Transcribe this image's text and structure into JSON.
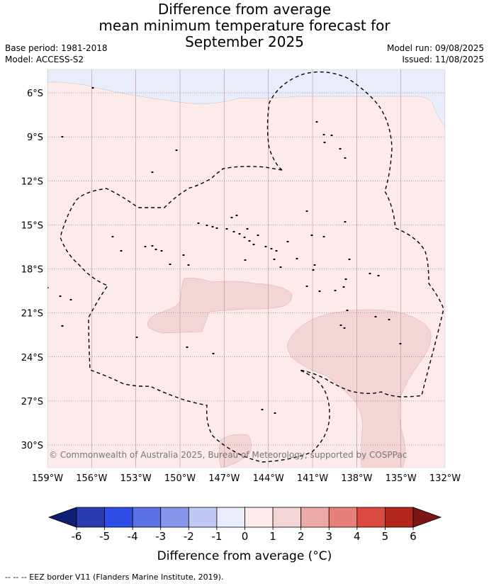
{
  "title": {
    "line1": "Difference from average",
    "line2": "mean minimum temperature forecast for",
    "line3": "September 2025"
  },
  "meta": {
    "base_period": "Base period: 1981-2018",
    "model": "Model: ACCESS-S2",
    "model_run": "Model run: 09/08/2025",
    "issued": "Issued: 11/08/2025"
  },
  "map": {
    "lat_ticks": [
      "6°S",
      "9°S",
      "12°S",
      "15°S",
      "18°S",
      "21°S",
      "24°S",
      "27°S",
      "30°S"
    ],
    "lon_ticks": [
      "159°W",
      "156°W",
      "153°W",
      "150°W",
      "147°W",
      "144°W",
      "141°W",
      "138°W",
      "135°W",
      "132°W"
    ],
    "copyright": "© Commonwealth of Australia 2025, Bureau of Meteorology, supported by COSPPac",
    "colors": {
      "band_0_1": "#fcebea",
      "band_1_2": "#f4d5d5",
      "band_m1_0": "#e8ecfb"
    }
  },
  "colorbar": {
    "ticks": [
      "-6",
      "-5",
      "-4",
      "-3",
      "-2",
      "-1",
      "0",
      "1",
      "2",
      "3",
      "4",
      "5",
      "6"
    ],
    "colors": [
      "#0f1f73",
      "#2a3cb0",
      "#2f4ee6",
      "#5b72e6",
      "#8797ec",
      "#c0c8f4",
      "#e8ecfb",
      "#fcebea",
      "#f4d5d5",
      "#eda9a6",
      "#e88079",
      "#db4a40",
      "#b3261e",
      "#7d1515"
    ],
    "label": "Difference from average (°C)"
  },
  "footer": "-- -- -- EEZ border V11 (Flanders Marine Institute, 2019)."
}
